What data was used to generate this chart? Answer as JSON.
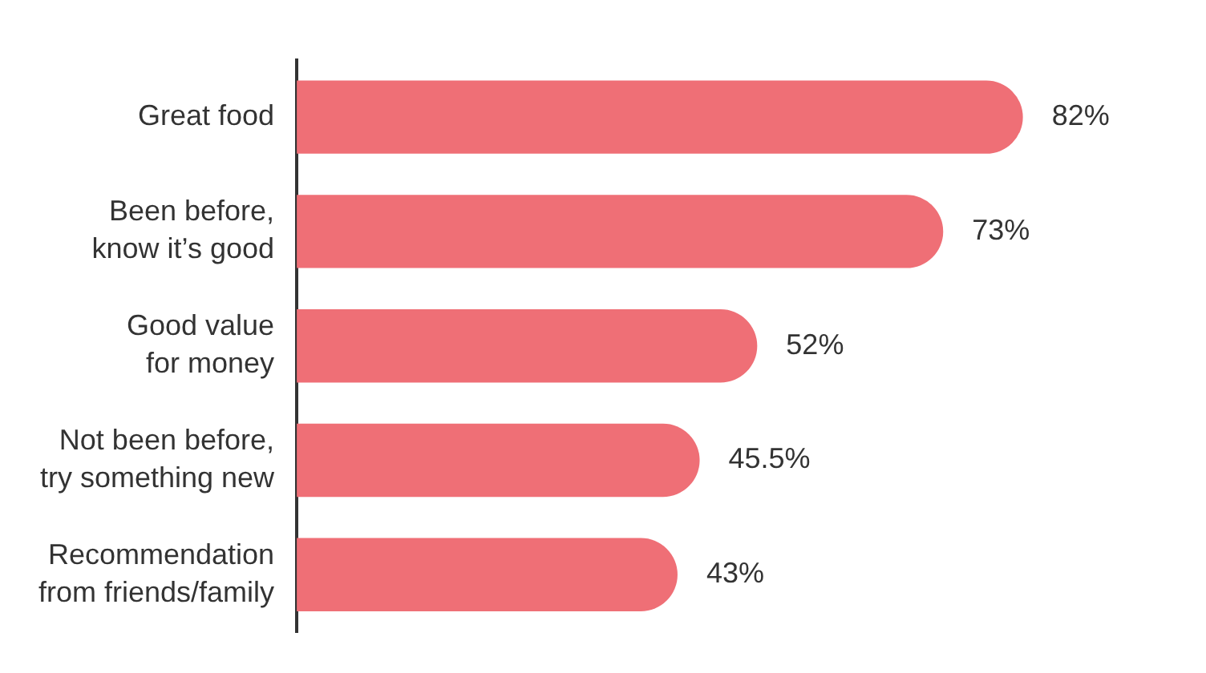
{
  "chart_data": {
    "type": "bar",
    "orientation": "horizontal",
    "categories": [
      "Great food",
      "Been before,\nknow it’s good",
      "Good value\nfor money",
      "Not been before,\ntry something new",
      "Recommendation\nfrom friends/family"
    ],
    "values": [
      82,
      73,
      52,
      45.5,
      43
    ],
    "value_labels": [
      "82%",
      "73%",
      "52%",
      "45.5%",
      "43%"
    ],
    "color": "#ef6f76",
    "tick_labels": "y",
    "legend": false
  }
}
